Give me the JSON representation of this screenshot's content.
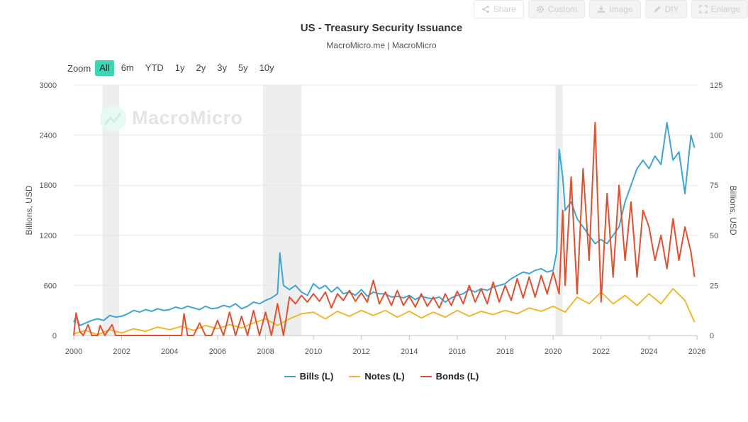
{
  "toolbar": {
    "share": "Share",
    "custom": "Custom",
    "image": "Image",
    "diy": "DIY",
    "enlarge": "Enlarge"
  },
  "zoom": {
    "label": "Zoom",
    "options": [
      "All",
      "6m",
      "YTD",
      "1y",
      "2y",
      "3y",
      "5y",
      "10y"
    ],
    "selected": "All"
  },
  "watermark": "MacroMicro",
  "colors": {
    "bills": "#3da5d3",
    "notes": "#f2b731",
    "bonds": "#e0502e",
    "recession": "#eeeeee",
    "grid": "#e6e6e6",
    "accent": "#3ed4b4"
  },
  "chart_data": {
    "type": "line",
    "title": "US - Treasury Security Issuance",
    "subtitle": "MacroMicro.me | MacroMicro",
    "xlabel": "",
    "ylabel_left": "Billions, USD",
    "ylabel_right": "Billions, USD",
    "xlim": [
      2000,
      2026
    ],
    "x_ticks": [
      "2000",
      "2002",
      "2004",
      "2006",
      "2008",
      "2010",
      "2012",
      "2014",
      "2016",
      "2018",
      "2020",
      "2022",
      "2024",
      "2026"
    ],
    "ylim_left": [
      0,
      3000
    ],
    "y_ticks_left": [
      "0",
      "600",
      "1200",
      "1800",
      "2400",
      "3000"
    ],
    "ylim_right": [
      0,
      125
    ],
    "y_ticks_right": [
      "0",
      "25",
      "50",
      "75",
      "100",
      "125"
    ],
    "recessions": [
      [
        2001.2,
        2001.9
      ],
      [
        2007.9,
        2009.5
      ],
      [
        2020.1,
        2020.4
      ]
    ],
    "legend_position": "bottom-center",
    "series": [
      {
        "name": "Bills (L)",
        "key": "bills",
        "x": [
          2000.0,
          2000.1,
          2000.25,
          2000.5,
          2000.75,
          2001.0,
          2001.25,
          2001.5,
          2001.75,
          2002.0,
          2002.25,
          2002.5,
          2002.75,
          2003.0,
          2003.25,
          2003.5,
          2003.75,
          2004.0,
          2004.25,
          2004.5,
          2004.75,
          2005.0,
          2005.25,
          2005.5,
          2005.75,
          2006.0,
          2006.25,
          2006.5,
          2006.75,
          2007.0,
          2007.25,
          2007.5,
          2007.75,
          2008.0,
          2008.25,
          2008.5,
          2008.6,
          2008.75,
          2009.0,
          2009.25,
          2009.5,
          2009.75,
          2010.0,
          2010.25,
          2010.5,
          2010.75,
          2011.0,
          2011.25,
          2011.5,
          2011.75,
          2012.0,
          2012.25,
          2012.5,
          2012.75,
          2013.0,
          2013.25,
          2013.5,
          2013.75,
          2014.0,
          2014.25,
          2014.5,
          2014.75,
          2015.0,
          2015.25,
          2015.5,
          2015.75,
          2016.0,
          2016.25,
          2016.5,
          2016.75,
          2017.0,
          2017.25,
          2017.5,
          2017.75,
          2018.0,
          2018.25,
          2018.5,
          2018.75,
          2019.0,
          2019.25,
          2019.5,
          2019.75,
          2020.0,
          2020.15,
          2020.25,
          2020.4,
          2020.5,
          2020.75,
          2021.0,
          2021.25,
          2021.5,
          2021.75,
          2022.0,
          2022.25,
          2022.5,
          2022.75,
          2023.0,
          2023.25,
          2023.5,
          2023.75,
          2024.0,
          2024.25,
          2024.5,
          2024.75,
          2025.0,
          2025.25,
          2025.5,
          2025.75,
          2025.9
        ],
        "y": [
          160,
          230,
          120,
          150,
          180,
          200,
          180,
          240,
          220,
          230,
          260,
          300,
          280,
          310,
          290,
          320,
          300,
          310,
          340,
          320,
          350,
          330,
          310,
          350,
          320,
          330,
          360,
          340,
          380,
          320,
          350,
          400,
          380,
          420,
          450,
          500,
          990,
          600,
          550,
          600,
          520,
          480,
          620,
          560,
          600,
          520,
          580,
          500,
          520,
          480,
          550,
          470,
          520,
          500,
          500,
          460,
          470,
          450,
          480,
          430,
          470,
          450,
          440,
          460,
          400,
          450,
          480,
          500,
          550,
          520,
          560,
          540,
          580,
          600,
          620,
          680,
          720,
          760,
          740,
          780,
          800,
          760,
          780,
          1000,
          2230,
          1900,
          1500,
          1600,
          1400,
          1300,
          1200,
          1100,
          1150,
          1100,
          1200,
          1300,
          1600,
          1800,
          2000,
          2100,
          2000,
          2150,
          2050,
          2550,
          2100,
          2200,
          1700,
          2400,
          2250
        ]
      },
      {
        "name": "Notes (L)",
        "key": "notes",
        "x": [
          2000.0,
          2000.5,
          2001.0,
          2001.5,
          2002.0,
          2002.5,
          2003.0,
          2003.5,
          2004.0,
          2004.5,
          2005.0,
          2005.5,
          2006.0,
          2006.5,
          2007.0,
          2007.5,
          2008.0,
          2008.5,
          2009.0,
          2009.5,
          2010.0,
          2010.5,
          2011.0,
          2011.5,
          2012.0,
          2012.5,
          2013.0,
          2013.5,
          2014.0,
          2014.5,
          2015.0,
          2015.5,
          2016.0,
          2016.5,
          2017.0,
          2017.5,
          2018.0,
          2018.5,
          2019.0,
          2019.5,
          2020.0,
          2020.5,
          2021.0,
          2021.5,
          2022.0,
          2022.5,
          2023.0,
          2023.5,
          2024.0,
          2024.5,
          2025.0,
          2025.5,
          2025.9
        ],
        "y": [
          20,
          60,
          10,
          70,
          30,
          80,
          50,
          100,
          70,
          110,
          60,
          120,
          80,
          130,
          90,
          150,
          200,
          120,
          200,
          260,
          280,
          200,
          290,
          230,
          300,
          240,
          300,
          220,
          290,
          210,
          280,
          220,
          300,
          230,
          290,
          250,
          300,
          260,
          330,
          290,
          350,
          280,
          460,
          380,
          520,
          380,
          480,
          360,
          500,
          380,
          560,
          420,
          160
        ]
      },
      {
        "name": "Bonds (L)",
        "key": "bonds",
        "x": [
          2000.0,
          2000.1,
          2000.25,
          2000.4,
          2000.6,
          2000.75,
          2001.0,
          2001.1,
          2001.3,
          2001.6,
          2001.75,
          2002.0,
          2002.5,
          2003.0,
          2003.5,
          2004.0,
          2004.5,
          2004.6,
          2004.75,
          2005.0,
          2005.25,
          2005.5,
          2005.75,
          2006.0,
          2006.25,
          2006.5,
          2006.75,
          2007.0,
          2007.25,
          2007.5,
          2007.75,
          2008.0,
          2008.25,
          2008.5,
          2008.75,
          2009.0,
          2009.25,
          2009.5,
          2009.75,
          2010.0,
          2010.25,
          2010.5,
          2010.75,
          2011.0,
          2011.25,
          2011.5,
          2011.75,
          2012.0,
          2012.25,
          2012.5,
          2012.75,
          2013.0,
          2013.25,
          2013.5,
          2013.75,
          2014.0,
          2014.25,
          2014.5,
          2014.75,
          2015.0,
          2015.25,
          2015.5,
          2015.75,
          2016.0,
          2016.25,
          2016.5,
          2016.75,
          2017.0,
          2017.25,
          2017.5,
          2017.75,
          2018.0,
          2018.25,
          2018.5,
          2018.75,
          2019.0,
          2019.25,
          2019.5,
          2019.75,
          2020.0,
          2020.25,
          2020.4,
          2020.5,
          2020.75,
          2021.0,
          2021.25,
          2021.5,
          2021.75,
          2022.0,
          2022.25,
          2022.5,
          2022.75,
          2023.0,
          2023.25,
          2023.5,
          2023.75,
          2024.0,
          2024.25,
          2024.5,
          2024.75,
          2025.0,
          2025.25,
          2025.5,
          2025.75,
          2025.9
        ],
        "y": [
          0,
          270,
          50,
          0,
          130,
          0,
          0,
          120,
          0,
          130,
          0,
          0,
          0,
          0,
          0,
          0,
          0,
          260,
          0,
          0,
          150,
          0,
          0,
          180,
          0,
          280,
          0,
          230,
          0,
          300,
          0,
          280,
          0,
          380,
          0,
          460,
          380,
          480,
          400,
          500,
          410,
          520,
          330,
          500,
          420,
          540,
          410,
          510,
          400,
          660,
          380,
          520,
          360,
          540,
          360,
          470,
          340,
          500,
          350,
          460,
          330,
          500,
          360,
          530,
          380,
          600,
          400,
          560,
          380,
          640,
          400,
          600,
          420,
          680,
          450,
          700,
          460,
          720,
          500,
          760,
          500,
          1500,
          600,
          1900,
          500,
          2000,
          900,
          2550,
          400,
          1700,
          700,
          1800,
          900,
          1600,
          700,
          1500,
          1300,
          900,
          1200,
          800,
          1400,
          900,
          1300,
          1000,
          700
        ]
      }
    ]
  }
}
